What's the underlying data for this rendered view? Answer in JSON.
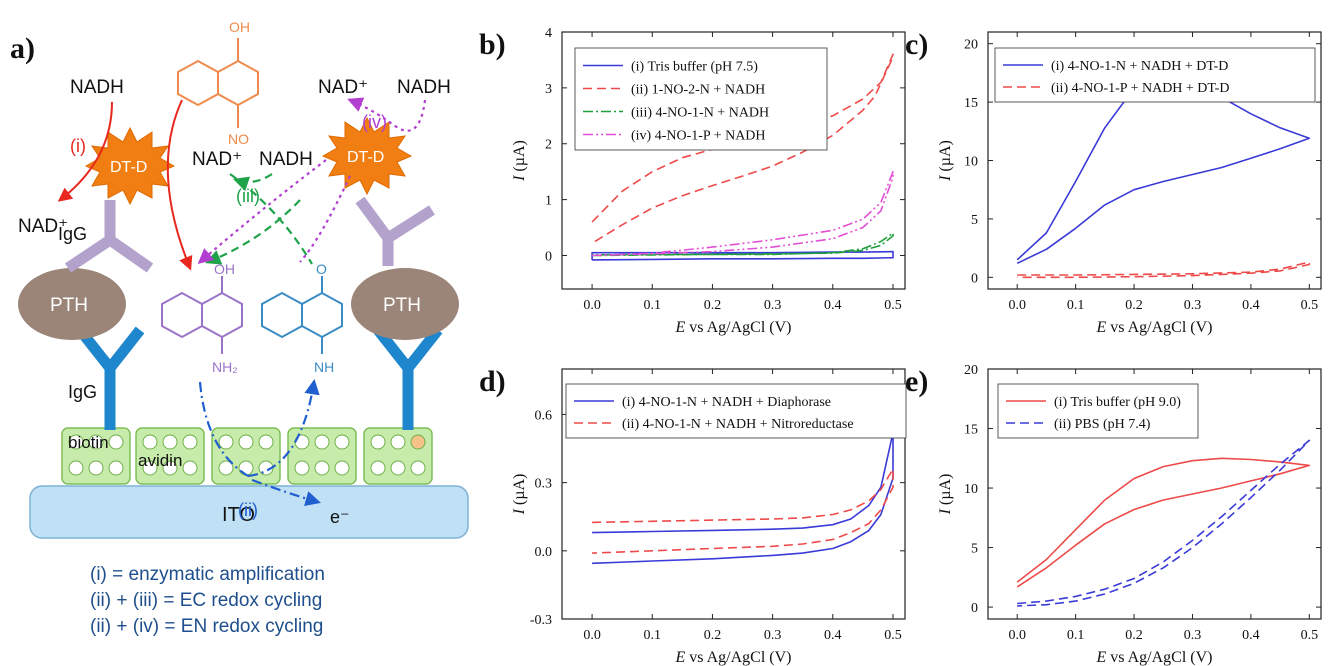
{
  "schematic": {
    "panel_label": "a)",
    "labels": {
      "nadh_top_left": "NADH",
      "nad_plus_top": "NAD⁺",
      "nadh_top_right": "NADH",
      "nad_plus_mid": "NAD⁺",
      "nadh_mid": "NADH",
      "nad_plus_left": "NAD⁺",
      "dtd_left": "DT-D",
      "dtd_right": "DT-D",
      "igg_upper": "IgG",
      "igg_lower": "IgG",
      "pth_left": "PTH",
      "pth_right": "PTH",
      "biotin": "biotin",
      "avidin": "avidin",
      "ito": "ITO",
      "electron": "e⁻",
      "step_i": "(i)",
      "step_ii": "(ii)",
      "step_iii": "(iii)",
      "step_iv": "(iv)",
      "chem_oh_top": "OH",
      "chem_no": "NO",
      "chem_oh_mid": "OH",
      "chem_nh2": "NH₂",
      "chem_o": "O",
      "chem_nh": "NH"
    },
    "legend": [
      "(i) = enzymatic amplification",
      "(ii) + (iii) = EC redox cycling",
      "(ii) + (iv) = EN redox cycling"
    ],
    "colors": {
      "red": "#e8281f",
      "green": "#1fa34a",
      "purple": "#b23fd0",
      "blue": "#1f5fcf",
      "dtd": "#f07e12",
      "igg": "#b3a2cc",
      "pth": "#9b8578",
      "antibody": "#1d86cc",
      "avidin": "#c7ebaa",
      "ito": "#bfe0f5",
      "text_blue": "#1e4f8c"
    }
  },
  "chart_data": [
    {
      "panel": "b)",
      "type": "line",
      "xlabel_var": "E",
      "xlabel_rest": " vs Ag/AgCl (V)",
      "ylabel_var": "I",
      "ylabel_rest": " (µA)",
      "xlim": [
        -0.05,
        0.52
      ],
      "ylim": [
        -0.6,
        4.0
      ],
      "xticks": [
        0.0,
        0.1,
        0.2,
        0.3,
        0.4,
        0.5
      ],
      "xtick_labels": [
        "0.0",
        "0.1",
        "0.2",
        "0.3",
        "0.4",
        "0.5"
      ],
      "yticks": [
        0,
        1,
        2,
        3,
        4
      ],
      "ytick_labels": [
        "0",
        "1",
        "2",
        "3",
        "4"
      ],
      "legend_position": "top-left",
      "series": [
        {
          "name": "(i) Tris buffer (pH 7.5)",
          "color": "#3a3ad8",
          "dash": "",
          "x": [
            0.0,
            0.1,
            0.2,
            0.3,
            0.4,
            0.45,
            0.5,
            0.5,
            0.45,
            0.4,
            0.3,
            0.2,
            0.1,
            0.0,
            0.0
          ],
          "y": [
            -0.08,
            -0.07,
            -0.06,
            -0.06,
            -0.05,
            -0.05,
            -0.04,
            0.07,
            0.06,
            0.06,
            0.05,
            0.05,
            0.05,
            0.05,
            -0.08
          ]
        },
        {
          "name": "(ii) 1-NO-2-N + NADH",
          "color": "#ee4a4a",
          "dash": "9,5",
          "x": [
            0.0,
            0.05,
            0.1,
            0.15,
            0.2,
            0.25,
            0.3,
            0.35,
            0.4,
            0.45,
            0.48,
            0.5,
            0.5,
            0.47,
            0.45,
            0.4,
            0.35,
            0.3,
            0.25,
            0.2,
            0.15,
            0.1,
            0.05,
            0.0
          ],
          "y": [
            0.6,
            1.15,
            1.5,
            1.75,
            1.9,
            2.05,
            2.15,
            2.3,
            2.5,
            2.8,
            3.1,
            3.6,
            3.55,
            2.85,
            2.6,
            2.15,
            1.85,
            1.6,
            1.42,
            1.25,
            1.07,
            0.85,
            0.55,
            0.22
          ]
        },
        {
          "name": "(iii) 4-NO-1-N + NADH",
          "color": "#1f9f3a",
          "dash": "10,3,2,3",
          "x": [
            0.0,
            0.1,
            0.2,
            0.3,
            0.4,
            0.45,
            0.48,
            0.5,
            0.5,
            0.48,
            0.45,
            0.4,
            0.3,
            0.2,
            0.1,
            0.0
          ],
          "y": [
            0.0,
            0.01,
            0.02,
            0.02,
            0.05,
            0.12,
            0.25,
            0.4,
            0.35,
            0.18,
            0.09,
            0.04,
            0.03,
            0.02,
            0.02,
            0.01
          ]
        },
        {
          "name": "(iv) 4-NO-1-P + NADH",
          "color": "#e24fd6",
          "dash": "10,3,2,3,2,3",
          "x": [
            0.0,
            0.1,
            0.2,
            0.3,
            0.4,
            0.45,
            0.48,
            0.5,
            0.5,
            0.48,
            0.45,
            0.4,
            0.3,
            0.2,
            0.1,
            0.0
          ],
          "y": [
            0.0,
            0.04,
            0.15,
            0.28,
            0.45,
            0.65,
            0.95,
            1.5,
            1.4,
            0.8,
            0.5,
            0.3,
            0.15,
            0.07,
            0.03,
            0.0
          ]
        }
      ]
    },
    {
      "panel": "c)",
      "type": "line",
      "xlabel_var": "E",
      "xlabel_rest": " vs Ag/AgCl (V)",
      "ylabel_var": "I",
      "ylabel_rest": " (µA)",
      "xlim": [
        -0.05,
        0.52
      ],
      "ylim": [
        -1.0,
        21.0
      ],
      "xticks": [
        0.0,
        0.1,
        0.2,
        0.3,
        0.4,
        0.5
      ],
      "xtick_labels": [
        "0.0",
        "0.1",
        "0.2",
        "0.3",
        "0.4",
        "0.5"
      ],
      "yticks": [
        0,
        5,
        10,
        15,
        20
      ],
      "ytick_labels": [
        "0",
        "5",
        "10",
        "15",
        "20"
      ],
      "legend_position": "top-left",
      "series": [
        {
          "name": "(i) 4-NO-1-N + NADH + DT-D",
          "color": "#3a3ad8",
          "dash": "",
          "x": [
            0.0,
            0.05,
            0.1,
            0.15,
            0.2,
            0.25,
            0.3,
            0.35,
            0.4,
            0.45,
            0.5,
            0.45,
            0.4,
            0.35,
            0.3,
            0.25,
            0.2,
            0.15,
            0.1,
            0.05,
            0.0
          ],
          "y": [
            1.5,
            3.8,
            8.2,
            12.8,
            16.2,
            17.4,
            16.8,
            15.4,
            14.0,
            12.8,
            11.9,
            11.0,
            10.2,
            9.4,
            8.8,
            8.2,
            7.5,
            6.2,
            4.2,
            2.4,
            1.2
          ]
        },
        {
          "name": "(ii) 4-NO-1-P + NADH + DT-D",
          "color": "#ee4a4a",
          "dash": "9,5",
          "x": [
            0.0,
            0.1,
            0.2,
            0.3,
            0.4,
            0.45,
            0.5,
            0.5,
            0.45,
            0.4,
            0.3,
            0.2,
            0.1,
            0.0
          ],
          "y": [
            0.2,
            0.2,
            0.25,
            0.3,
            0.45,
            0.7,
            1.3,
            1.1,
            0.55,
            0.35,
            0.15,
            0.05,
            0.0,
            0.0
          ]
        }
      ]
    },
    {
      "panel": "d)",
      "type": "line",
      "xlabel_var": "E",
      "xlabel_rest": " vs Ag/AgCl (V)",
      "ylabel_var": "I",
      "ylabel_rest": " (µA)",
      "xlim": [
        -0.05,
        0.52
      ],
      "ylim": [
        -0.3,
        0.8
      ],
      "xticks": [
        0.0,
        0.1,
        0.2,
        0.3,
        0.4,
        0.5
      ],
      "xtick_labels": [
        "0.0",
        "0.1",
        "0.2",
        "0.3",
        "0.4",
        "0.5"
      ],
      "yticks": [
        -0.3,
        0.0,
        0.3,
        0.6
      ],
      "ytick_labels": [
        "-0.3",
        "0.0",
        "0.3",
        "0.6"
      ],
      "legend_position": "top-left",
      "series": [
        {
          "name": "(i) 4-NO-1-N + NADH + Diaphorase",
          "color": "#3a3ad8",
          "dash": "",
          "x": [
            0.0,
            0.1,
            0.2,
            0.3,
            0.35,
            0.4,
            0.43,
            0.46,
            0.48,
            0.5,
            0.5,
            0.48,
            0.46,
            0.43,
            0.4,
            0.35,
            0.3,
            0.2,
            0.1,
            0.0
          ],
          "y": [
            0.08,
            0.085,
            0.09,
            0.095,
            0.1,
            0.115,
            0.14,
            0.2,
            0.28,
            0.52,
            0.32,
            0.16,
            0.09,
            0.04,
            0.01,
            -0.01,
            -0.02,
            -0.035,
            -0.045,
            -0.055
          ]
        },
        {
          "name": "(ii) 4-NO-1-N + NADH + Nitroreductase",
          "color": "#ee4a4a",
          "dash": "9,5",
          "x": [
            0.0,
            0.1,
            0.2,
            0.3,
            0.35,
            0.4,
            0.43,
            0.46,
            0.48,
            0.5,
            0.5,
            0.48,
            0.46,
            0.43,
            0.4,
            0.35,
            0.3,
            0.2,
            0.1,
            0.0
          ],
          "y": [
            0.125,
            0.13,
            0.135,
            0.14,
            0.145,
            0.16,
            0.18,
            0.22,
            0.27,
            0.36,
            0.28,
            0.18,
            0.12,
            0.08,
            0.05,
            0.03,
            0.02,
            0.01,
            0.0,
            -0.01
          ]
        }
      ]
    },
    {
      "panel": "e)",
      "type": "line",
      "xlabel_var": "E",
      "xlabel_rest": " vs Ag/AgCl (V)",
      "ylabel_var": "I",
      "ylabel_rest": " (µA)",
      "xlim": [
        -0.05,
        0.52
      ],
      "ylim": [
        -1.0,
        20.0
      ],
      "xticks": [
        0.0,
        0.1,
        0.2,
        0.3,
        0.4,
        0.5
      ],
      "xtick_labels": [
        "0.0",
        "0.1",
        "0.2",
        "0.3",
        "0.4",
        "0.5"
      ],
      "yticks": [
        0,
        5,
        10,
        15,
        20
      ],
      "ytick_labels": [
        "0",
        "5",
        "10",
        "15",
        "20"
      ],
      "legend_position": "top-left",
      "series": [
        {
          "name": "(i) Tris buffer (pH 9.0)",
          "color": "#ee4a4a",
          "dash": "",
          "x": [
            0.0,
            0.05,
            0.1,
            0.15,
            0.2,
            0.25,
            0.3,
            0.35,
            0.4,
            0.45,
            0.5,
            0.45,
            0.4,
            0.35,
            0.3,
            0.25,
            0.2,
            0.15,
            0.1,
            0.05,
            0.0
          ],
          "y": [
            2.1,
            4.0,
            6.5,
            9.0,
            10.8,
            11.8,
            12.3,
            12.5,
            12.4,
            12.2,
            11.9,
            11.2,
            10.6,
            10.0,
            9.5,
            9.0,
            8.2,
            7.0,
            5.2,
            3.3,
            1.7
          ]
        },
        {
          "name": "(ii) PBS (pH 7.4)",
          "color": "#3a3ad8",
          "dash": "9,5",
          "x": [
            0.0,
            0.05,
            0.1,
            0.15,
            0.2,
            0.25,
            0.3,
            0.35,
            0.4,
            0.45,
            0.5,
            0.45,
            0.4,
            0.35,
            0.3,
            0.25,
            0.2,
            0.15,
            0.1,
            0.05,
            0.0
          ],
          "y": [
            0.3,
            0.5,
            0.9,
            1.5,
            2.4,
            3.8,
            5.6,
            7.6,
            9.8,
            12.0,
            14.0,
            11.5,
            9.2,
            7.0,
            5.0,
            3.3,
            2.0,
            1.1,
            0.5,
            0.2,
            0.1
          ]
        }
      ]
    }
  ]
}
